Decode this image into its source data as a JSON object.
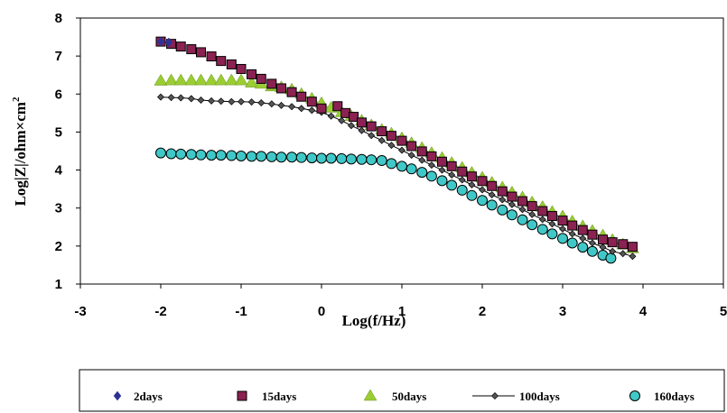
{
  "chart_data": {
    "type": "scatter",
    "title": "",
    "xlabel": "Log(f/Hz)",
    "ylabel": "Log|Z|/ohm×cm",
    "ylabel_superscript": "2",
    "xlim": [
      -3,
      5
    ],
    "ylim": [
      1,
      8
    ],
    "xticks": [
      "-3",
      "-2",
      "-1",
      "0",
      "1",
      "2",
      "3",
      "4",
      "5"
    ],
    "yticks": [
      "1",
      "2",
      "3",
      "4",
      "5",
      "6",
      "7",
      "8"
    ],
    "grid": false,
    "legend_position": "bottom",
    "series": [
      {
        "name": "2days",
        "marker": "diamond",
        "color": "#2e3192",
        "points": [
          [
            -2.0,
            7.38
          ],
          [
            -1.9,
            7.36
          ]
        ]
      },
      {
        "name": "15days",
        "marker": "square",
        "color": "#8b2252",
        "points": [
          [
            -2.0,
            7.38
          ],
          [
            -1.87,
            7.32
          ],
          [
            -1.75,
            7.25
          ],
          [
            -1.62,
            7.18
          ],
          [
            -1.5,
            7.1
          ],
          [
            -1.37,
            6.99
          ],
          [
            -1.25,
            6.87
          ],
          [
            -1.12,
            6.78
          ],
          [
            -1.0,
            6.66
          ],
          [
            -0.87,
            6.52
          ],
          [
            -0.75,
            6.4
          ],
          [
            -0.62,
            6.27
          ],
          [
            -0.5,
            6.15
          ],
          [
            -0.37,
            6.05
          ],
          [
            -0.25,
            5.93
          ],
          [
            -0.12,
            5.8
          ],
          [
            0.0,
            5.62
          ],
          [
            0.2,
            5.68
          ],
          [
            0.3,
            5.5
          ],
          [
            0.4,
            5.4
          ],
          [
            0.5,
            5.25
          ],
          [
            0.62,
            5.15
          ],
          [
            0.75,
            5.02
          ],
          [
            0.87,
            4.9
          ],
          [
            1.0,
            4.77
          ],
          [
            1.12,
            4.63
          ],
          [
            1.25,
            4.49
          ],
          [
            1.37,
            4.36
          ],
          [
            1.5,
            4.22
          ],
          [
            1.62,
            4.1
          ],
          [
            1.75,
            3.96
          ],
          [
            1.87,
            3.83
          ],
          [
            2.0,
            3.71
          ],
          [
            2.12,
            3.58
          ],
          [
            2.25,
            3.44
          ],
          [
            2.37,
            3.3
          ],
          [
            2.5,
            3.18
          ],
          [
            2.62,
            3.05
          ],
          [
            2.75,
            2.92
          ],
          [
            2.87,
            2.79
          ],
          [
            3.0,
            2.67
          ],
          [
            3.12,
            2.54
          ],
          [
            3.25,
            2.42
          ],
          [
            3.37,
            2.3
          ],
          [
            3.5,
            2.17
          ],
          [
            3.62,
            2.1
          ],
          [
            3.75,
            2.05
          ],
          [
            3.87,
            1.98
          ]
        ]
      },
      {
        "name": "50days",
        "marker": "triangle",
        "color": "#9acd32",
        "points": [
          [
            -2.0,
            6.35
          ],
          [
            -1.87,
            6.36
          ],
          [
            -1.75,
            6.36
          ],
          [
            -1.62,
            6.36
          ],
          [
            -1.5,
            6.36
          ],
          [
            -1.37,
            6.36
          ],
          [
            -1.25,
            6.36
          ],
          [
            -1.12,
            6.36
          ],
          [
            -1.0,
            6.36
          ],
          [
            -0.87,
            6.3
          ],
          [
            -0.75,
            6.27
          ],
          [
            -0.62,
            6.2
          ],
          [
            -0.5,
            6.18
          ],
          [
            -0.37,
            6.12
          ],
          [
            -0.25,
            6.0
          ],
          [
            -0.12,
            5.88
          ],
          [
            0.0,
            5.76
          ],
          [
            0.12,
            5.64
          ],
          [
            0.25,
            5.52
          ],
          [
            0.37,
            5.42
          ],
          [
            0.5,
            5.3
          ],
          [
            0.62,
            5.18
          ],
          [
            0.75,
            5.06
          ],
          [
            0.87,
            4.96
          ],
          [
            1.0,
            4.84
          ],
          [
            1.12,
            4.71
          ],
          [
            1.25,
            4.58
          ],
          [
            1.37,
            4.45
          ],
          [
            1.5,
            4.32
          ],
          [
            1.62,
            4.19
          ],
          [
            1.75,
            4.06
          ],
          [
            1.87,
            3.93
          ],
          [
            2.0,
            3.8
          ],
          [
            2.12,
            3.67
          ],
          [
            2.25,
            3.54
          ],
          [
            2.37,
            3.41
          ],
          [
            2.5,
            3.28
          ],
          [
            2.62,
            3.15
          ],
          [
            2.75,
            3.03
          ],
          [
            2.87,
            2.9
          ],
          [
            3.0,
            2.78
          ],
          [
            3.12,
            2.65
          ],
          [
            3.25,
            2.52
          ],
          [
            3.37,
            2.4
          ],
          [
            3.5,
            2.28
          ],
          [
            3.62,
            2.16
          ],
          [
            3.75,
            2.04
          ],
          [
            3.87,
            1.94
          ]
        ]
      },
      {
        "name": "100days",
        "marker": "diamond-line",
        "color": "#000000",
        "points": [
          [
            -2.0,
            5.92
          ],
          [
            -1.87,
            5.91
          ],
          [
            -1.75,
            5.9
          ],
          [
            -1.62,
            5.88
          ],
          [
            -1.5,
            5.84
          ],
          [
            -1.37,
            5.82
          ],
          [
            -1.25,
            5.81
          ],
          [
            -1.12,
            5.8
          ],
          [
            -1.0,
            5.8
          ],
          [
            -0.87,
            5.79
          ],
          [
            -0.75,
            5.77
          ],
          [
            -0.62,
            5.74
          ],
          [
            -0.5,
            5.7
          ],
          [
            -0.37,
            5.67
          ],
          [
            -0.25,
            5.62
          ],
          [
            -0.12,
            5.57
          ],
          [
            0.0,
            5.52
          ],
          [
            0.12,
            5.42
          ],
          [
            0.25,
            5.3
          ],
          [
            0.37,
            5.17
          ],
          [
            0.5,
            5.04
          ],
          [
            0.62,
            4.91
          ],
          [
            0.75,
            4.78
          ],
          [
            0.87,
            4.65
          ],
          [
            1.0,
            4.52
          ],
          [
            1.12,
            4.39
          ],
          [
            1.25,
            4.26
          ],
          [
            1.37,
            4.13
          ],
          [
            1.5,
            4.0
          ],
          [
            1.62,
            3.87
          ],
          [
            1.75,
            3.74
          ],
          [
            1.87,
            3.61
          ],
          [
            2.0,
            3.48
          ],
          [
            2.12,
            3.35
          ],
          [
            2.25,
            3.22
          ],
          [
            2.37,
            3.09
          ],
          [
            2.5,
            2.96
          ],
          [
            2.62,
            2.83
          ],
          [
            2.75,
            2.7
          ],
          [
            2.87,
            2.58
          ],
          [
            3.0,
            2.45
          ],
          [
            3.12,
            2.32
          ],
          [
            3.25,
            2.2
          ],
          [
            3.37,
            2.08
          ],
          [
            3.5,
            1.97
          ],
          [
            3.62,
            1.86
          ],
          [
            3.75,
            1.8
          ],
          [
            3.87,
            1.73
          ]
        ]
      },
      {
        "name": "160days",
        "marker": "circle",
        "color": "#40c8c8",
        "points": [
          [
            -2.0,
            4.45
          ],
          [
            -1.87,
            4.43
          ],
          [
            -1.75,
            4.42
          ],
          [
            -1.62,
            4.41
          ],
          [
            -1.5,
            4.4
          ],
          [
            -1.37,
            4.39
          ],
          [
            -1.25,
            4.39
          ],
          [
            -1.12,
            4.38
          ],
          [
            -1.0,
            4.37
          ],
          [
            -0.87,
            4.36
          ],
          [
            -0.75,
            4.36
          ],
          [
            -0.62,
            4.35
          ],
          [
            -0.5,
            4.34
          ],
          [
            -0.37,
            4.34
          ],
          [
            -0.25,
            4.33
          ],
          [
            -0.12,
            4.32
          ],
          [
            0.0,
            4.31
          ],
          [
            0.12,
            4.31
          ],
          [
            0.25,
            4.3
          ],
          [
            0.37,
            4.29
          ],
          [
            0.5,
            4.28
          ],
          [
            0.62,
            4.27
          ],
          [
            0.75,
            4.25
          ],
          [
            0.87,
            4.17
          ],
          [
            1.0,
            4.1
          ],
          [
            1.12,
            4.03
          ],
          [
            1.25,
            3.94
          ],
          [
            1.37,
            3.84
          ],
          [
            1.5,
            3.72
          ],
          [
            1.62,
            3.6
          ],
          [
            1.75,
            3.47
          ],
          [
            1.87,
            3.33
          ],
          [
            2.0,
            3.2
          ],
          [
            2.12,
            3.08
          ],
          [
            2.25,
            2.95
          ],
          [
            2.37,
            2.82
          ],
          [
            2.5,
            2.69
          ],
          [
            2.62,
            2.56
          ],
          [
            2.75,
            2.44
          ],
          [
            2.87,
            2.32
          ],
          [
            3.0,
            2.2
          ],
          [
            3.12,
            2.08
          ],
          [
            3.25,
            1.97
          ],
          [
            3.37,
            1.86
          ],
          [
            3.5,
            1.76
          ],
          [
            3.6,
            1.68
          ]
        ]
      }
    ]
  }
}
